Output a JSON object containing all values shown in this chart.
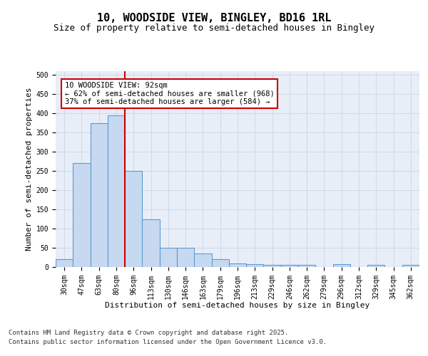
{
  "title_line1": "10, WOODSIDE VIEW, BINGLEY, BD16 1RL",
  "title_line2": "Size of property relative to semi-detached houses in Bingley",
  "xlabel": "Distribution of semi-detached houses by size in Bingley",
  "ylabel": "Number of semi-detached properties",
  "categories": [
    "30sqm",
    "47sqm",
    "63sqm",
    "80sqm",
    "96sqm",
    "113sqm",
    "130sqm",
    "146sqm",
    "163sqm",
    "179sqm",
    "196sqm",
    "213sqm",
    "229sqm",
    "246sqm",
    "262sqm",
    "279sqm",
    "296sqm",
    "312sqm",
    "329sqm",
    "345sqm",
    "362sqm"
  ],
  "values": [
    20,
    270,
    375,
    395,
    250,
    125,
    50,
    50,
    35,
    20,
    10,
    8,
    5,
    5,
    5,
    0,
    8,
    0,
    5,
    0,
    5
  ],
  "bar_color": "#c7d9f0",
  "bar_edge_color": "#5b9bd5",
  "grid_color": "#d0d8e8",
  "background_color": "#e8eef8",
  "vline_x_index": 3.5,
  "vline_color": "#cc0000",
  "annotation_text": "10 WOODSIDE VIEW: 92sqm\n← 62% of semi-detached houses are smaller (968)\n37% of semi-detached houses are larger (584) →",
  "annotation_box_color": "#ffffff",
  "annotation_box_edge": "#cc0000",
  "ylim": [
    0,
    510
  ],
  "yticks": [
    0,
    50,
    100,
    150,
    200,
    250,
    300,
    350,
    400,
    450,
    500
  ],
  "footnote_line1": "Contains HM Land Registry data © Crown copyright and database right 2025.",
  "footnote_line2": "Contains public sector information licensed under the Open Government Licence v3.0.",
  "title_fontsize": 11,
  "subtitle_fontsize": 9,
  "axis_label_fontsize": 8,
  "tick_fontsize": 7,
  "annotation_fontsize": 7.5,
  "footnote_fontsize": 6.5
}
